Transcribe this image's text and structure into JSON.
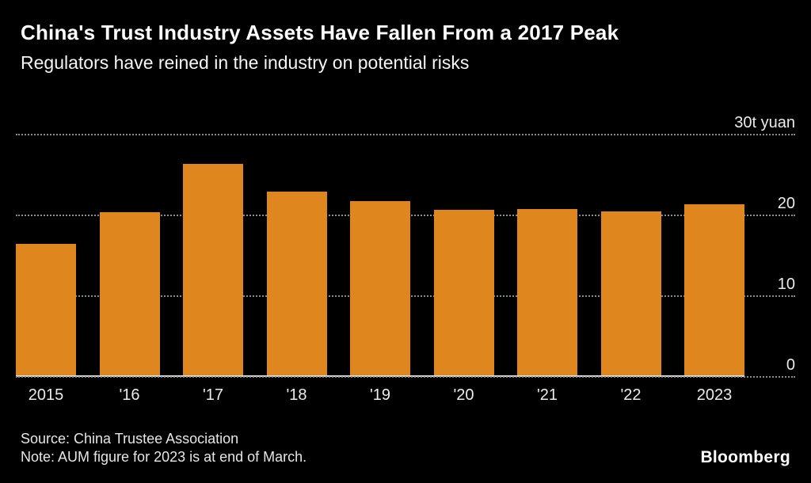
{
  "header": {
    "title": "China's Trust Industry Assets Have Fallen From a 2017 Peak",
    "subtitle": "Regulators have reined in the industry on potential risks"
  },
  "footer": {
    "source": "Source: China Trustee Association",
    "note": "Note: AUM figure for 2023 is at end of March.",
    "brand": "Bloomberg"
  },
  "colors": {
    "background": "#000000",
    "bar": "#e0861f",
    "title_text": "#ffffff",
    "axis_text": "#ebebeb",
    "gridline": "#8a8a8a",
    "axis_line": "#dcdcdc"
  },
  "chart_data": {
    "type": "bar",
    "title": "China's Trust Industry Assets Have Fallen From a 2017 Peak",
    "subtitle": "Regulators have reined in the industry on potential risks",
    "categories": [
      "2015",
      "'16",
      "'17",
      "'18",
      "'19",
      "'20",
      "'21",
      "'22",
      "2023"
    ],
    "values": [
      16.3,
      20.2,
      26.2,
      22.7,
      21.6,
      20.5,
      20.6,
      20.3,
      21.2
    ],
    "unit": "trillion yuan",
    "xlabel": "",
    "ylabel": "t yuan",
    "ylim": [
      0,
      30
    ],
    "yticks": [
      0,
      10,
      20,
      30
    ],
    "ytick_labels": [
      "0",
      "10",
      "20",
      "30t yuan"
    ],
    "grid": "horizontal-dotted",
    "legend": "none",
    "axis_side": "right"
  }
}
